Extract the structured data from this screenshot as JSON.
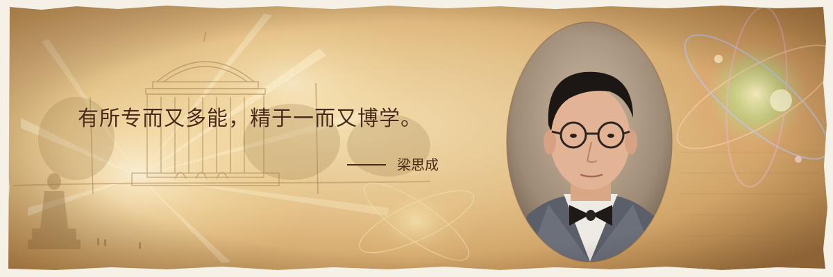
{
  "quote": {
    "text": "有所专而又多能，精于一而又博学。"
  },
  "attribution": {
    "name": "梁思成"
  },
  "colors": {
    "parchment_light": "#ecd5a4",
    "parchment_mid": "#d8b274",
    "parchment_dark": "#b58a50",
    "text": "#4a2a16",
    "torn_edge": "#f6f1e6"
  },
  "portrait": {
    "description_icon": "man-portrait-with-round-glasses-and-bow-tie"
  },
  "icons": [
    "domed-building-sketch-icon",
    "atom-orbit-icon",
    "statue-silhouette-icon"
  ]
}
